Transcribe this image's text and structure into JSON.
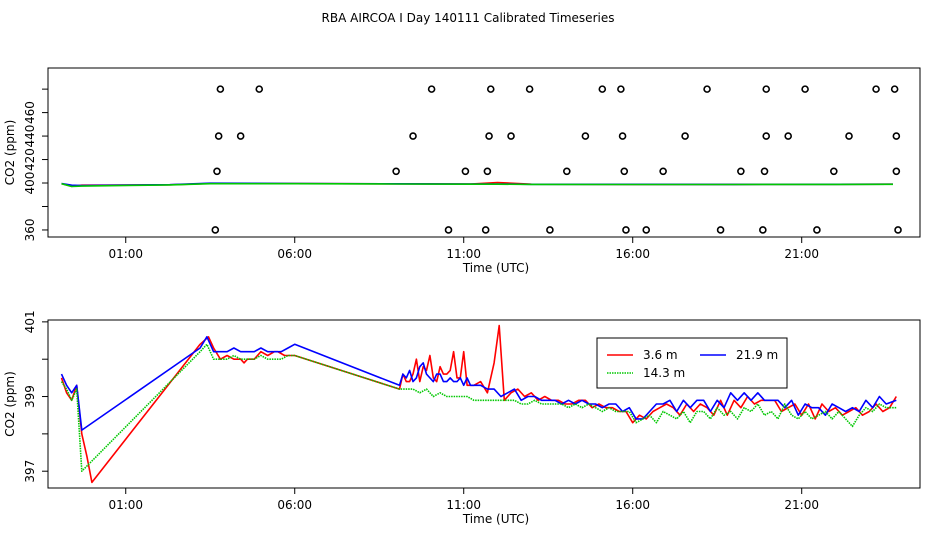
{
  "figure_title": "RBA AIRCOA I  Day 140111  Calibrated Timeseries",
  "chart_data": [
    {
      "type": "scatter",
      "title": "",
      "xlabel": "Time (UTC)",
      "ylabel": "CO2 (ppm)",
      "xlim": [
        -1.3,
        24.5
      ],
      "ylim": [
        354,
        498
      ],
      "xticks": [
        1,
        6,
        11,
        16,
        21
      ],
      "xtick_labels": [
        "01:00",
        "06:00",
        "11:00",
        "16:00",
        "21:00"
      ],
      "yticks": [
        360,
        380,
        400,
        420,
        440,
        460,
        480
      ],
      "ytick_labels": [
        "360",
        "",
        "400",
        "420",
        "440",
        "460",
        ""
      ],
      "points": [
        [
          3.8,
          480
        ],
        [
          4.95,
          480
        ],
        [
          10.05,
          480
        ],
        [
          11.8,
          480
        ],
        [
          12.95,
          480
        ],
        [
          15.1,
          480
        ],
        [
          15.65,
          480
        ],
        [
          18.2,
          480
        ],
        [
          19.95,
          480
        ],
        [
          21.1,
          480
        ],
        [
          23.2,
          480
        ],
        [
          23.75,
          480
        ],
        [
          3.75,
          440
        ],
        [
          4.4,
          440
        ],
        [
          9.5,
          440
        ],
        [
          11.75,
          440
        ],
        [
          12.4,
          440
        ],
        [
          14.6,
          440
        ],
        [
          15.7,
          440
        ],
        [
          17.55,
          440
        ],
        [
          19.95,
          440
        ],
        [
          20.6,
          440
        ],
        [
          22.4,
          440
        ],
        [
          23.8,
          440
        ],
        [
          3.7,
          410
        ],
        [
          9.0,
          410
        ],
        [
          11.05,
          410
        ],
        [
          11.7,
          410
        ],
        [
          14.05,
          410
        ],
        [
          15.75,
          410
        ],
        [
          16.9,
          410
        ],
        [
          19.2,
          410
        ],
        [
          19.9,
          410
        ],
        [
          21.95,
          410
        ],
        [
          23.8,
          410
        ],
        [
          3.65,
          360
        ],
        [
          10.55,
          360
        ],
        [
          11.65,
          360
        ],
        [
          13.55,
          360
        ],
        [
          15.8,
          360
        ],
        [
          16.4,
          360
        ],
        [
          18.6,
          360
        ],
        [
          19.85,
          360
        ],
        [
          21.45,
          360
        ],
        [
          23.85,
          360
        ]
      ],
      "series": [
        {
          "name": "3.6 m",
          "color": "#ff0000",
          "x": [
            -0.9,
            -0.6,
            -0.3,
            2.3,
            3.5,
            6.0,
            9.0,
            11.2,
            12.0,
            13.0,
            16.0,
            19.0,
            22.0,
            23.7
          ],
          "y": [
            399.5,
            397.2,
            398.1,
            398.5,
            399.6,
            399.5,
            399.3,
            399.2,
            400.4,
            399.0,
            398.7,
            398.8,
            398.9,
            399.0
          ]
        },
        {
          "name": "21.9 m",
          "color": "#0000ff",
          "x": [
            -0.9,
            -0.6,
            -0.3,
            2.3,
            3.5,
            6.0,
            9.0,
            11.2,
            12.0,
            13.0,
            16.0,
            19.0,
            22.0,
            23.7
          ],
          "y": [
            399.6,
            398.1,
            397.9,
            398.6,
            399.8,
            399.6,
            399.3,
            399.1,
            399.2,
            398.9,
            398.9,
            398.8,
            398.9,
            399.0
          ]
        },
        {
          "name": "14.3 m",
          "color": "#00c800",
          "x": [
            -0.9,
            -0.6,
            -0.3,
            2.3,
            3.5,
            6.0,
            9.0,
            11.2,
            12.0,
            13.0,
            16.0,
            19.0,
            22.0,
            23.7
          ],
          "y": [
            399.4,
            397.0,
            397.4,
            398.4,
            399.4,
            399.4,
            399.2,
            399.0,
            399.0,
            398.8,
            398.7,
            398.7,
            398.8,
            398.9
          ]
        }
      ]
    },
    {
      "type": "line",
      "title": "",
      "xlabel": "Time (UTC)",
      "ylabel": "CO2 (ppm)",
      "xlim": [
        -1.3,
        24.5
      ],
      "ylim": [
        396.55,
        401.05
      ],
      "xticks": [
        1,
        6,
        11,
        16,
        21
      ],
      "xtick_labels": [
        "01:00",
        "06:00",
        "11:00",
        "16:00",
        "21:00"
      ],
      "yticks": [
        397,
        398,
        399,
        400,
        401
      ],
      "ytick_labels": [
        "397",
        "",
        "399",
        "",
        "401"
      ],
      "legend": {
        "placement": "top-right",
        "entries": [
          "3.6 m",
          "21.9 m",
          "14.3 m"
        ]
      },
      "series": [
        {
          "name": "3.6 m",
          "color": "#ff0000",
          "dash": false,
          "x": [
            -0.9,
            -0.75,
            -0.6,
            -0.45,
            -0.3,
            -0.15,
            0.0,
            3.2,
            3.45,
            3.6,
            3.8,
            4.0,
            4.2,
            4.4,
            4.5,
            4.6,
            4.8,
            5.0,
            5.2,
            5.4,
            5.5,
            5.7,
            6.0,
            9.1,
            9.2,
            9.3,
            9.4,
            9.5,
            9.6,
            9.7,
            9.8,
            9.9,
            10.0,
            10.1,
            10.2,
            10.3,
            10.4,
            10.5,
            10.6,
            10.7,
            10.8,
            10.9,
            11.0,
            11.1,
            11.2,
            11.3,
            11.5,
            11.7,
            11.9,
            12.05,
            12.2,
            12.4,
            12.6,
            12.8,
            13.0,
            13.2,
            13.4,
            13.6,
            13.8,
            14.0,
            14.2,
            14.4,
            14.6,
            14.8,
            15.0,
            15.2,
            15.4,
            15.6,
            15.8,
            16.0,
            16.2,
            16.4,
            16.6,
            16.8,
            17.0,
            17.2,
            17.4,
            17.6,
            17.8,
            18.0,
            18.2,
            18.4,
            18.6,
            18.8,
            19.0,
            19.2,
            19.4,
            19.6,
            19.8,
            20.0,
            20.2,
            20.4,
            20.6,
            20.8,
            21.0,
            21.2,
            21.4,
            21.6,
            21.8,
            22.0,
            22.2,
            22.4,
            22.6,
            22.8,
            23.0,
            23.2,
            23.4,
            23.6,
            23.8
          ],
          "y": [
            399.5,
            399.1,
            398.9,
            399.3,
            398.0,
            397.4,
            396.7,
            400.4,
            400.6,
            400.3,
            400.0,
            400.1,
            400.0,
            400.0,
            399.9,
            400.0,
            400.0,
            400.2,
            400.1,
            400.2,
            400.2,
            400.1,
            400.1,
            399.2,
            399.6,
            399.4,
            399.4,
            399.6,
            400.0,
            399.4,
            399.8,
            399.7,
            400.1,
            399.5,
            399.4,
            399.8,
            399.6,
            399.6,
            399.7,
            400.2,
            399.5,
            399.5,
            400.2,
            399.3,
            399.3,
            399.3,
            399.4,
            399.1,
            399.9,
            400.9,
            398.9,
            399.1,
            399.2,
            399.0,
            399.1,
            398.9,
            399.0,
            398.9,
            398.9,
            398.8,
            398.8,
            398.9,
            398.9,
            398.7,
            398.8,
            398.7,
            398.7,
            398.6,
            398.6,
            398.3,
            398.5,
            398.4,
            398.6,
            398.7,
            398.8,
            398.7,
            398.5,
            398.8,
            398.6,
            398.8,
            398.7,
            398.5,
            398.9,
            398.5,
            398.9,
            398.7,
            399.0,
            398.8,
            398.9,
            398.9,
            398.9,
            398.6,
            398.7,
            398.8,
            398.5,
            398.8,
            398.4,
            398.8,
            398.6,
            398.7,
            398.5,
            398.6,
            398.7,
            398.5,
            398.6,
            398.8,
            398.6,
            398.7,
            399.0
          ]
        },
        {
          "name": "21.9 m",
          "color": "#0000ff",
          "dash": false,
          "x": [
            -0.9,
            -0.75,
            -0.6,
            -0.45,
            -0.3,
            3.2,
            3.4,
            3.6,
            3.8,
            4.0,
            4.2,
            4.4,
            4.6,
            4.8,
            5.0,
            5.2,
            5.4,
            5.6,
            5.8,
            6.0,
            9.1,
            9.2,
            9.3,
            9.4,
            9.5,
            9.6,
            9.7,
            9.8,
            9.9,
            10.0,
            10.1,
            10.2,
            10.3,
            10.4,
            10.5,
            10.6,
            10.7,
            10.8,
            10.9,
            11.0,
            11.1,
            11.2,
            11.3,
            11.5,
            11.7,
            11.9,
            12.1,
            12.3,
            12.5,
            12.7,
            12.9,
            13.1,
            13.3,
            13.5,
            13.7,
            13.9,
            14.1,
            14.3,
            14.5,
            14.7,
            14.9,
            15.1,
            15.3,
            15.5,
            15.7,
            15.9,
            16.1,
            16.3,
            16.5,
            16.7,
            16.9,
            17.1,
            17.3,
            17.5,
            17.7,
            17.9,
            18.1,
            18.3,
            18.5,
            18.7,
            18.9,
            19.1,
            19.3,
            19.5,
            19.7,
            19.9,
            20.1,
            20.3,
            20.5,
            20.7,
            20.9,
            21.1,
            21.3,
            21.5,
            21.7,
            21.9,
            22.1,
            22.3,
            22.5,
            22.7,
            22.9,
            23.1,
            23.3,
            23.5,
            23.8
          ],
          "y": [
            399.6,
            399.3,
            399.1,
            399.3,
            398.1,
            400.3,
            400.6,
            400.2,
            400.2,
            400.2,
            400.3,
            400.2,
            400.2,
            400.2,
            400.3,
            400.2,
            400.2,
            400.2,
            400.3,
            400.4,
            399.3,
            399.6,
            399.5,
            399.7,
            399.4,
            399.5,
            399.8,
            399.9,
            399.6,
            399.5,
            399.4,
            399.6,
            399.6,
            399.4,
            399.4,
            399.5,
            399.4,
            399.4,
            399.5,
            399.3,
            399.5,
            399.3,
            399.3,
            399.3,
            399.2,
            399.2,
            399.0,
            399.1,
            399.2,
            398.9,
            399.0,
            399.0,
            398.9,
            398.9,
            398.9,
            398.8,
            398.9,
            398.8,
            398.9,
            398.8,
            398.8,
            398.7,
            398.8,
            398.8,
            398.6,
            398.7,
            398.4,
            398.4,
            398.6,
            398.8,
            398.8,
            398.9,
            398.6,
            398.9,
            398.7,
            398.9,
            398.9,
            398.6,
            398.9,
            398.7,
            399.1,
            398.9,
            399.1,
            398.9,
            399.1,
            398.9,
            398.9,
            398.9,
            398.7,
            398.9,
            398.5,
            398.8,
            398.7,
            398.7,
            398.5,
            398.8,
            398.7,
            398.6,
            398.7,
            398.6,
            398.9,
            398.7,
            399.0,
            398.8,
            398.9
          ]
        },
        {
          "name": "14.3 m",
          "color": "#00c800",
          "dash": true,
          "x": [
            -0.9,
            -0.75,
            -0.6,
            -0.45,
            -0.3,
            3.2,
            3.4,
            3.6,
            3.8,
            4.0,
            4.2,
            4.4,
            4.6,
            4.8,
            5.0,
            5.2,
            5.4,
            5.6,
            5.8,
            6.0,
            9.1,
            9.3,
            9.5,
            9.7,
            9.9,
            10.1,
            10.3,
            10.5,
            10.7,
            10.9,
            11.1,
            11.3,
            11.5,
            11.7,
            11.9,
            12.1,
            12.3,
            12.5,
            12.7,
            12.9,
            13.1,
            13.3,
            13.5,
            13.7,
            13.9,
            14.1,
            14.3,
            14.5,
            14.7,
            14.9,
            15.1,
            15.3,
            15.5,
            15.7,
            15.9,
            16.1,
            16.3,
            16.5,
            16.7,
            16.9,
            17.1,
            17.3,
            17.5,
            17.7,
            17.9,
            18.1,
            18.3,
            18.5,
            18.7,
            18.9,
            19.1,
            19.3,
            19.5,
            19.7,
            19.9,
            20.1,
            20.3,
            20.5,
            20.7,
            20.9,
            21.1,
            21.3,
            21.5,
            21.7,
            21.9,
            22.1,
            22.3,
            22.5,
            22.7,
            22.9,
            23.1,
            23.3,
            23.5,
            23.8
          ],
          "y": [
            399.4,
            399.2,
            398.9,
            399.2,
            397.0,
            400.2,
            400.4,
            400.0,
            400.0,
            400.0,
            400.1,
            400.0,
            400.0,
            400.0,
            400.1,
            400.0,
            400.0,
            400.0,
            400.1,
            400.1,
            399.2,
            399.2,
            399.2,
            399.1,
            399.2,
            399.0,
            399.1,
            399.0,
            399.0,
            399.0,
            399.0,
            398.9,
            398.9,
            398.9,
            398.9,
            398.9,
            398.9,
            398.9,
            398.8,
            398.8,
            398.9,
            398.8,
            398.8,
            398.8,
            398.8,
            398.7,
            398.8,
            398.7,
            398.8,
            398.7,
            398.6,
            398.7,
            398.6,
            398.6,
            398.6,
            398.3,
            398.4,
            398.5,
            398.3,
            398.6,
            398.5,
            398.4,
            398.6,
            398.3,
            398.6,
            398.6,
            398.4,
            398.7,
            398.5,
            398.6,
            398.4,
            398.7,
            398.6,
            398.8,
            398.5,
            398.6,
            398.4,
            398.8,
            398.5,
            398.4,
            398.6,
            398.4,
            398.5,
            398.6,
            398.4,
            398.6,
            398.4,
            398.2,
            398.5,
            398.7,
            398.6,
            398.8,
            398.7,
            398.7
          ]
        }
      ]
    }
  ]
}
